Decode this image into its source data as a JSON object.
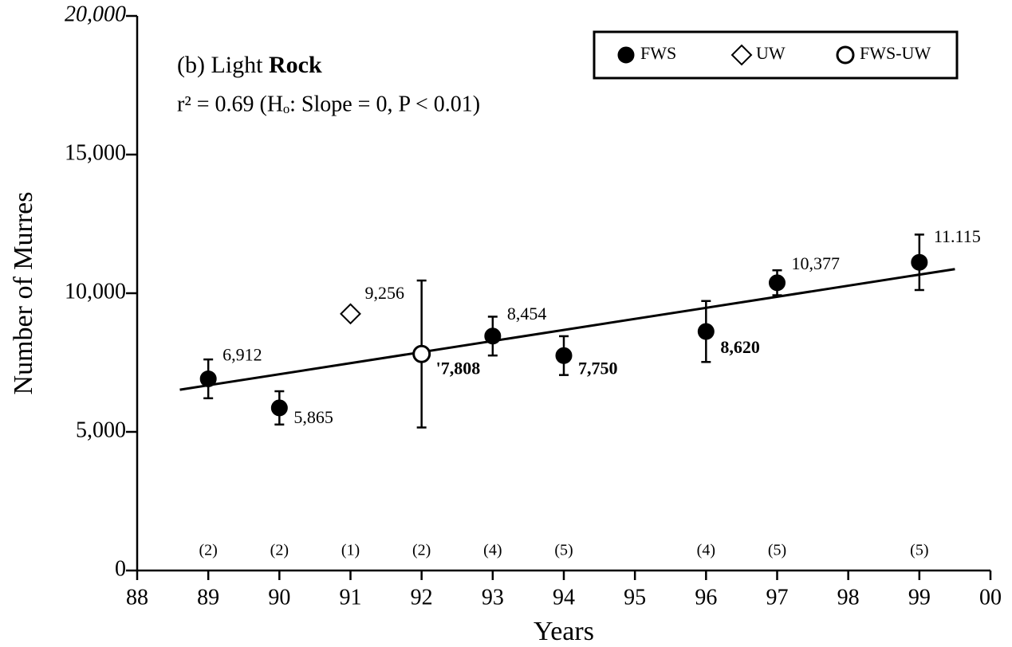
{
  "chart_data": {
    "type": "scatter",
    "title": [
      "(b) Light ",
      "Rock"
    ],
    "annotation": "r² = 0.69 (Hₒ: Slope = 0, P < 0.01)",
    "xlabel": "Years",
    "ylabel": "Number of Murres",
    "xlim": [
      88,
      100
    ],
    "xticks": [
      88,
      89,
      90,
      91,
      92,
      93,
      94,
      95,
      96,
      97,
      98,
      99,
      {
        "value": 100,
        "label": "00"
      }
    ],
    "ylim": [
      0,
      20000
    ],
    "yticks": [
      0,
      {
        "value": 5000,
        "label": "5,000"
      },
      {
        "value": 10000,
        "label": "10,000"
      },
      {
        "value": 15000,
        "label": "15,000"
      },
      {
        "value": 20000,
        "label": "20,000"
      }
    ],
    "legend": "upper right",
    "series": [
      {
        "name": "FWS",
        "marker": "filled-circle",
        "color": "#000000",
        "x": [
          89,
          90,
          93,
          94,
          96,
          97,
          99
        ],
        "values": [
          6912,
          5865,
          8454,
          7750,
          8620,
          10377,
          11115
        ],
        "errors": [
          700,
          600,
          700,
          700,
          1100,
          450,
          1000
        ],
        "value_labels": [
          "6,912",
          "5,865",
          "8,454",
          "7,750",
          "8,620",
          "10,377",
          "11.115"
        ],
        "n": [
          "(2)",
          "(2)",
          "(4)",
          "(5)",
          "(4)",
          "(5)",
          "(5)"
        ]
      },
      {
        "name": "UW",
        "marker": "open-diamond",
        "color": "#000000",
        "x": [
          91
        ],
        "values": [
          9256
        ],
        "errors": [
          0
        ],
        "value_labels": [
          "9,256"
        ],
        "n": [
          "(1)"
        ]
      },
      {
        "name": "FWS-UW",
        "marker": "open-circle",
        "color": "#000000",
        "x": [
          92
        ],
        "values": [
          7808
        ],
        "errors": [
          2650
        ],
        "value_labels": [
          "'7,808"
        ],
        "n": [
          "(2)"
        ]
      }
    ],
    "fit": {
      "x": [
        88.6,
        99.5
      ],
      "y": [
        6520,
        10870
      ]
    }
  }
}
